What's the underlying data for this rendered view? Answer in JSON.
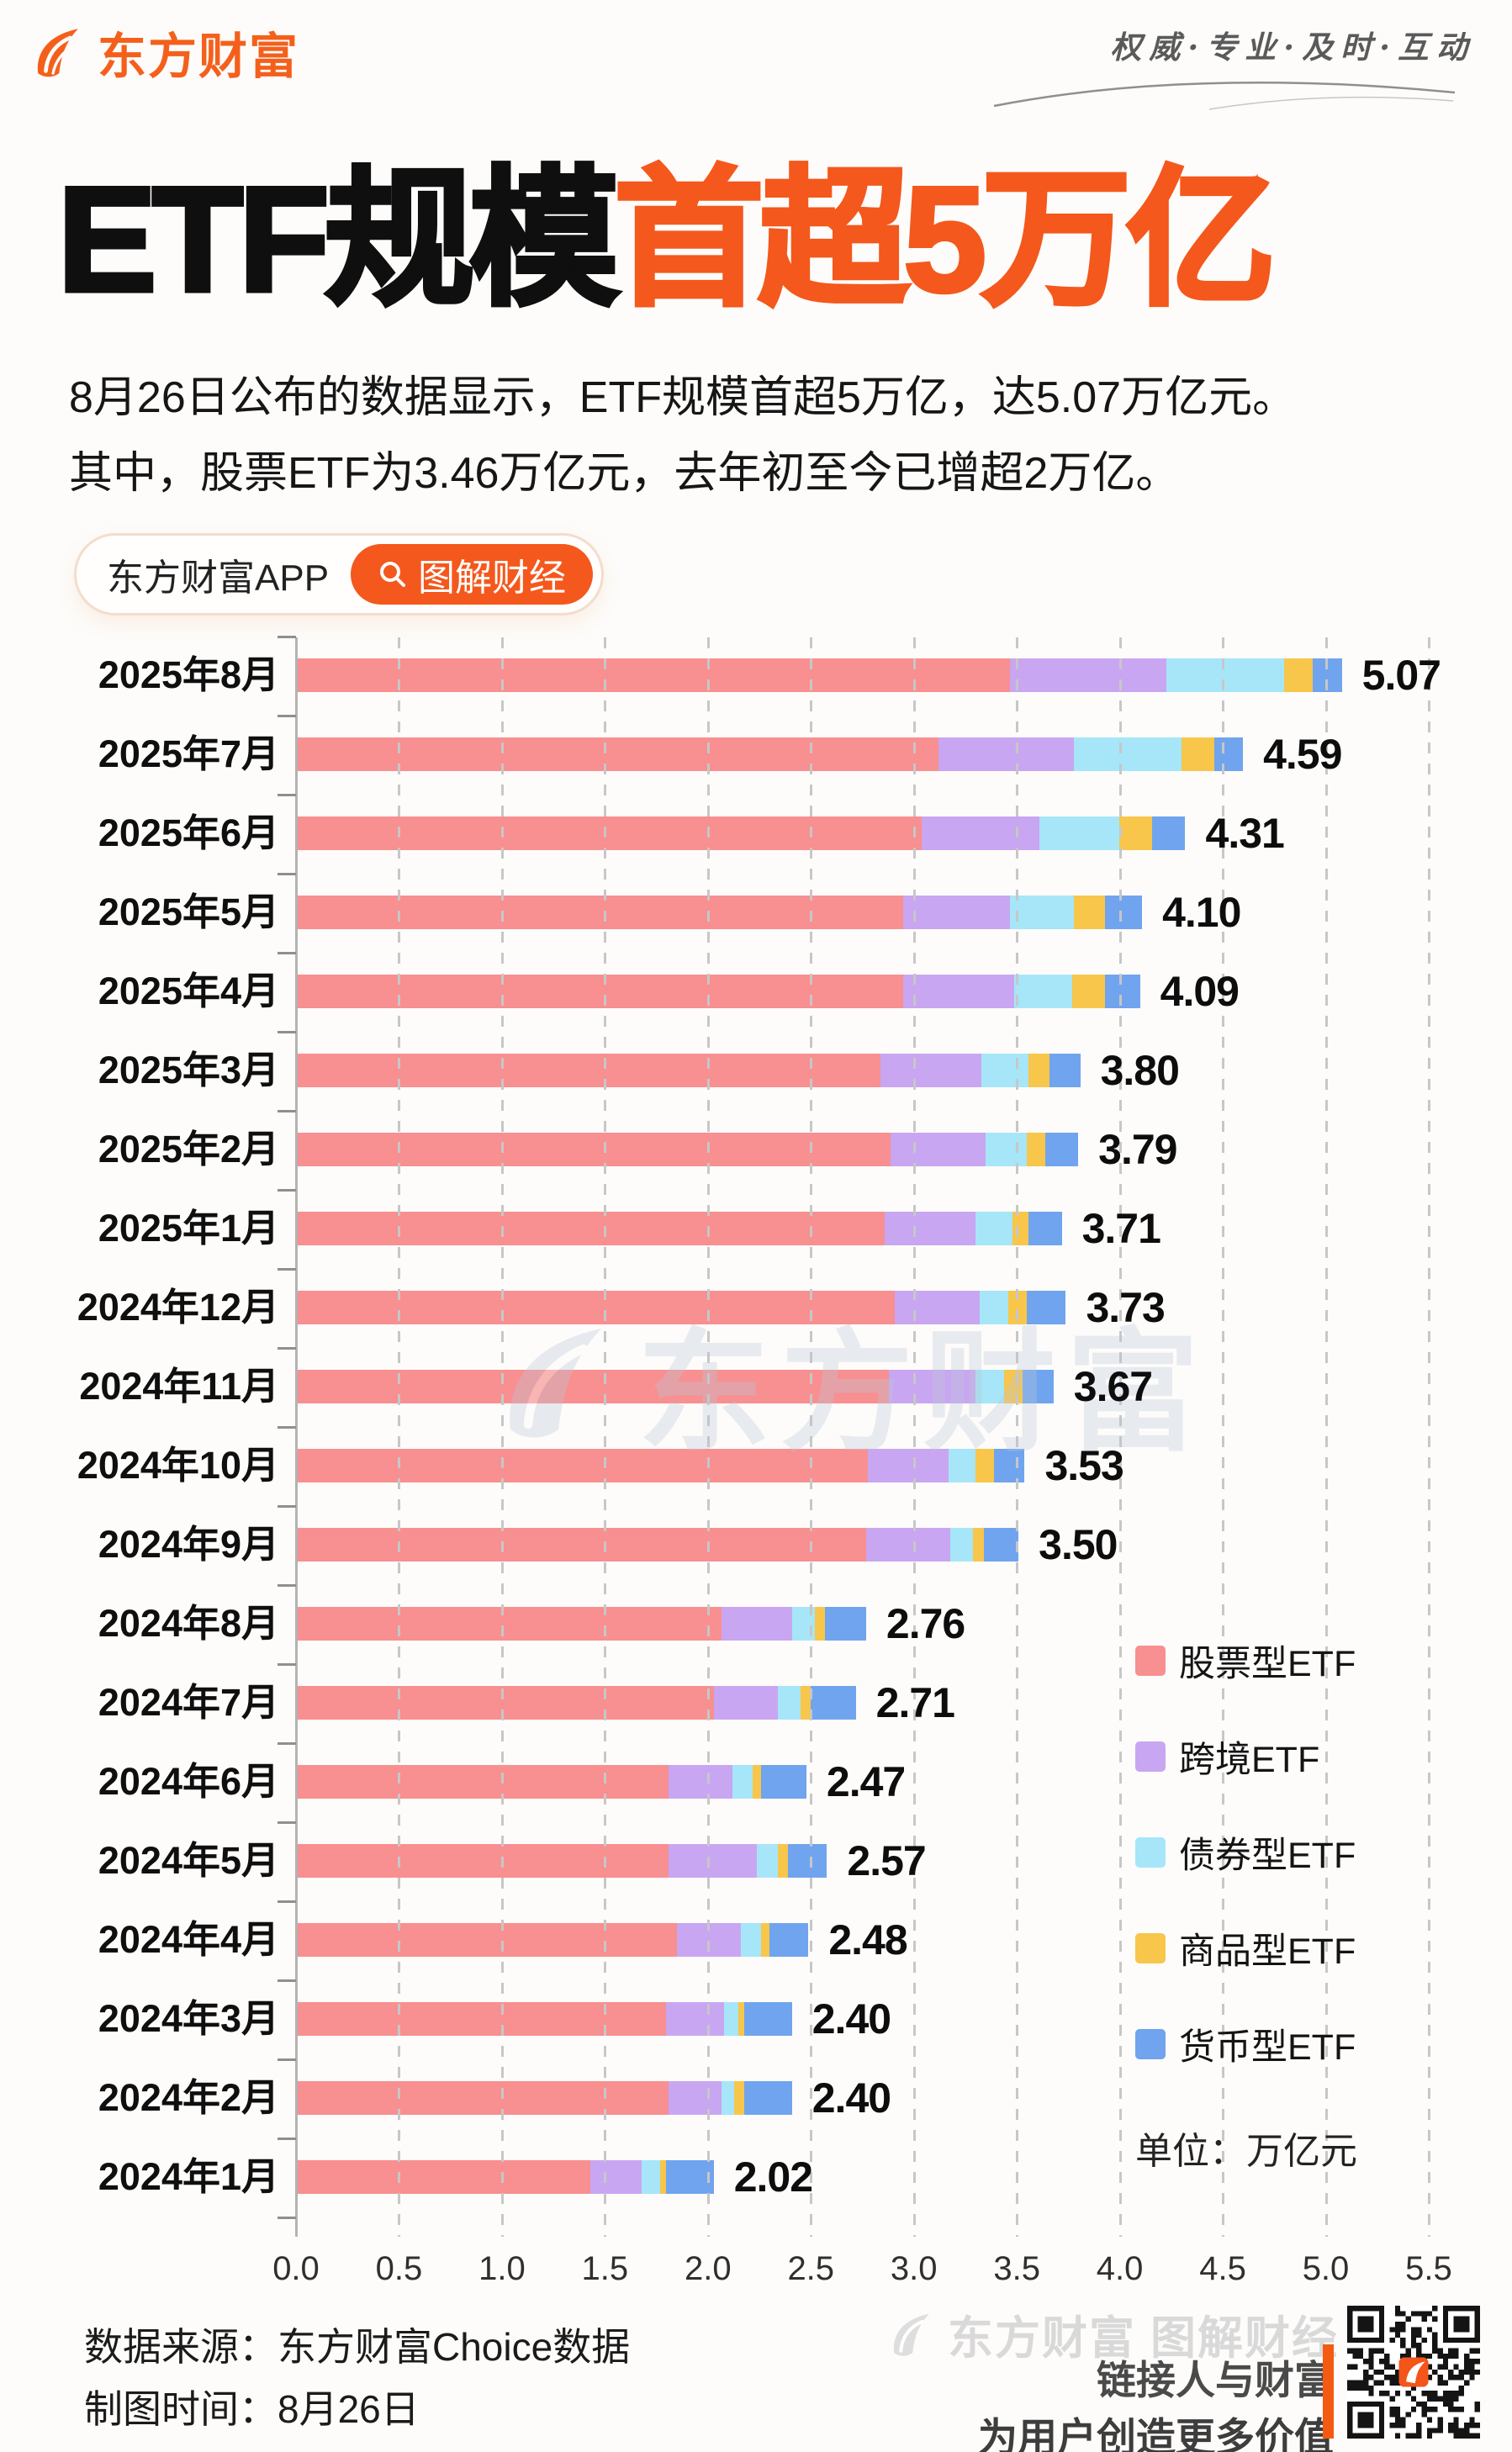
{
  "brand": {
    "name": "东方财富",
    "slogan": "权威·专业·及时·互动"
  },
  "title": {
    "black": "ETF规模",
    "orange": "首超5万亿"
  },
  "intro": {
    "line1": "8月26日公布的数据显示，ETF规模首超5万亿，达5.07万亿元。",
    "line2": "其中，股票ETF为3.46万亿元，去年初至今已增超2万亿。"
  },
  "badges": {
    "app_label": "东方财富APP",
    "tag_label": "图解财经"
  },
  "chart_data": {
    "type": "bar",
    "orientation": "horizontal",
    "title": "ETF规模首超5万亿",
    "unit_label": "单位：万亿元",
    "xlabel": "",
    "ylabel": "",
    "xlim": [
      0,
      5.5
    ],
    "x_ticks": [
      0.0,
      0.5,
      1.0,
      1.5,
      2.0,
      2.5,
      3.0,
      3.5,
      4.0,
      4.5,
      5.0,
      5.5
    ],
    "grid": "dashed-vertical",
    "legend_position": "right",
    "categories": [
      "2025年8月",
      "2025年7月",
      "2025年6月",
      "2025年5月",
      "2025年4月",
      "2025年3月",
      "2025年2月",
      "2025年1月",
      "2024年12月",
      "2024年11月",
      "2024年10月",
      "2024年9月",
      "2024年8月",
      "2024年7月",
      "2024年6月",
      "2024年5月",
      "2024年4月",
      "2024年3月",
      "2024年2月",
      "2024年1月"
    ],
    "totals": [
      5.07,
      4.59,
      4.31,
      4.1,
      4.09,
      3.8,
      3.79,
      3.71,
      3.73,
      3.67,
      3.53,
      3.5,
      2.76,
      2.71,
      2.47,
      2.57,
      2.48,
      2.4,
      2.4,
      2.02
    ],
    "series": [
      {
        "name": "股票型ETF",
        "color": "#f88f90",
        "values": [
          3.46,
          3.11,
          3.03,
          2.94,
          2.94,
          2.83,
          2.88,
          2.85,
          2.9,
          2.87,
          2.77,
          2.76,
          2.06,
          2.02,
          1.8,
          1.8,
          1.84,
          1.79,
          1.8,
          1.42
        ]
      },
      {
        "name": "跨境ETF",
        "color": "#c9a6f1",
        "values": [
          0.76,
          0.66,
          0.57,
          0.52,
          0.54,
          0.49,
          0.46,
          0.44,
          0.41,
          0.42,
          0.39,
          0.41,
          0.34,
          0.31,
          0.31,
          0.43,
          0.31,
          0.28,
          0.26,
          0.25
        ]
      },
      {
        "name": "债券型ETF",
        "color": "#a6e6f8",
        "values": [
          0.57,
          0.52,
          0.39,
          0.31,
          0.28,
          0.23,
          0.2,
          0.18,
          0.14,
          0.14,
          0.13,
          0.11,
          0.11,
          0.11,
          0.1,
          0.1,
          0.1,
          0.07,
          0.06,
          0.09
        ]
      },
      {
        "name": "商品型ETF",
        "color": "#f7c64b",
        "values": [
          0.14,
          0.16,
          0.16,
          0.15,
          0.16,
          0.1,
          0.09,
          0.08,
          0.09,
          0.09,
          0.09,
          0.05,
          0.05,
          0.05,
          0.04,
          0.05,
          0.04,
          0.03,
          0.05,
          0.03
        ]
      },
      {
        "name": "货币型ETF",
        "color": "#70a4ee",
        "values": [
          0.14,
          0.14,
          0.16,
          0.18,
          0.17,
          0.15,
          0.16,
          0.16,
          0.19,
          0.15,
          0.15,
          0.17,
          0.2,
          0.22,
          0.22,
          0.19,
          0.19,
          0.23,
          0.23,
          0.23
        ]
      }
    ]
  },
  "watermark": {
    "chart": "东方财富",
    "footer": "东方财富 图解财经"
  },
  "footer": {
    "source_label": "数据来源：",
    "source_value": "东方财富Choice数据",
    "date_label": "制图时间：",
    "date_value": "8月26日",
    "slogan_line1": "链接人与财富",
    "slogan_line2": "为用户创造更多价值"
  },
  "colors": {
    "accent": "#f4581c",
    "logo_orange": "#f4601c",
    "grid": "#c7c7c7",
    "axis": "#b3b3b3",
    "footer_watermark": "#d9d9d9"
  }
}
